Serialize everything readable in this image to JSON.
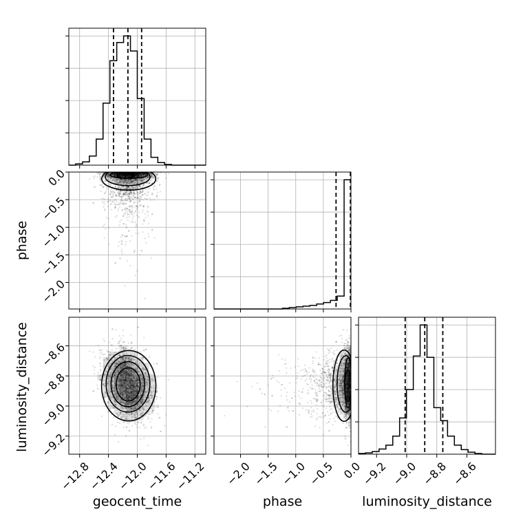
{
  "chart_data": {
    "type": "corner",
    "parameters": [
      "geocent_time",
      "phase",
      "luminosity_distance"
    ],
    "axis_labels": {
      "geocent_time": "geocent_time",
      "phase": "phase",
      "luminosity_distance": "luminosity_distance"
    },
    "ranges": {
      "geocent_time": [
        -12.95,
        -11.05
      ],
      "phase": [
        -2.48,
        0.0
      ],
      "luminosity_distance": [
        -9.32,
        -8.41
      ]
    },
    "ticks": {
      "geocent_time": {
        "values": [
          -12.8,
          -12.4,
          -12.0,
          -11.6,
          -11.2
        ],
        "labels": [
          "−12.8",
          "−12.4",
          "−12.0",
          "−11.6",
          "−11.2"
        ]
      },
      "phase": {
        "values": [
          -2.0,
          -1.5,
          -1.0,
          -0.5,
          0.0
        ],
        "labels": [
          "−2.0",
          "−1.5",
          "−1.0",
          "−0.5",
          "0.0"
        ]
      },
      "luminosity_distance": {
        "values": [
          -9.2,
          -9.0,
          -8.8,
          -8.6
        ],
        "labels": [
          "−9.2",
          "−9.0",
          "−8.8",
          "−8.6"
        ]
      }
    },
    "grid": true,
    "histograms": {
      "geocent_time": {
        "bin_edges": [
          -12.95,
          -12.855,
          -12.76,
          -12.665,
          -12.57,
          -12.475,
          -12.38,
          -12.285,
          -12.19,
          -12.095,
          -12.0,
          -11.905,
          -11.81,
          -11.715,
          -11.62,
          -11.525,
          -11.43,
          -11.335,
          -11.24,
          -11.145,
          -11.05
        ],
        "counts": [
          0,
          2,
          5,
          14,
          40,
          95,
          160,
          188,
          198,
          175,
          102,
          40,
          12,
          4,
          1,
          0,
          0,
          0,
          0,
          0
        ],
        "quantiles": [
          -12.33,
          -12.13,
          -11.94
        ]
      },
      "phase": {
        "bin_edges": [
          -2.48,
          -2.356,
          -2.232,
          -2.108,
          -1.984,
          -1.86,
          -1.736,
          -1.612,
          -1.488,
          -1.364,
          -1.24,
          -1.116,
          -0.992,
          -0.868,
          -0.744,
          -0.62,
          -0.496,
          -0.372,
          -0.248,
          -0.124,
          0.0
        ],
        "counts": [
          0,
          0,
          0,
          0,
          0,
          0,
          0,
          0,
          0,
          0,
          1,
          2,
          3,
          4,
          5,
          7,
          9,
          12,
          18,
          180
        ],
        "quantiles": [
          -0.27,
          -0.01
        ]
      },
      "luminosity_distance": {
        "bin_edges": [
          -9.32,
          -9.2745,
          -9.229,
          -9.1835,
          -9.138,
          -9.0925,
          -9.047,
          -9.0015,
          -8.956,
          -8.9105,
          -8.865,
          -8.8195,
          -8.774,
          -8.7285,
          -8.683,
          -8.6375,
          -8.592,
          -8.5465,
          -8.501,
          -8.4555,
          -8.41
        ],
        "counts": [
          1,
          2,
          4,
          8,
          14,
          28,
          56,
          100,
          152,
          200,
          150,
          72,
          52,
          28,
          14,
          7,
          3,
          1,
          0,
          0
        ],
        "quantiles": [
          -9.01,
          -8.88,
          -8.76
        ]
      }
    },
    "pairs": [
      {
        "x": "geocent_time",
        "y": "phase",
        "kind": "scatter_contour"
      },
      {
        "x": "geocent_time",
        "y": "luminosity_distance",
        "kind": "scatter_contour"
      },
      {
        "x": "phase",
        "y": "luminosity_distance",
        "kind": "scatter_contour"
      }
    ],
    "sample_model": {
      "geocent_time": {
        "center": -12.13,
        "sd": 0.16
      },
      "phase": {
        "mode": 0.0,
        "tail": "exponential-negative"
      },
      "luminosity_distance": {
        "center": -8.86,
        "sd": 0.11
      },
      "correlation_time_distance": -0.25
    }
  }
}
